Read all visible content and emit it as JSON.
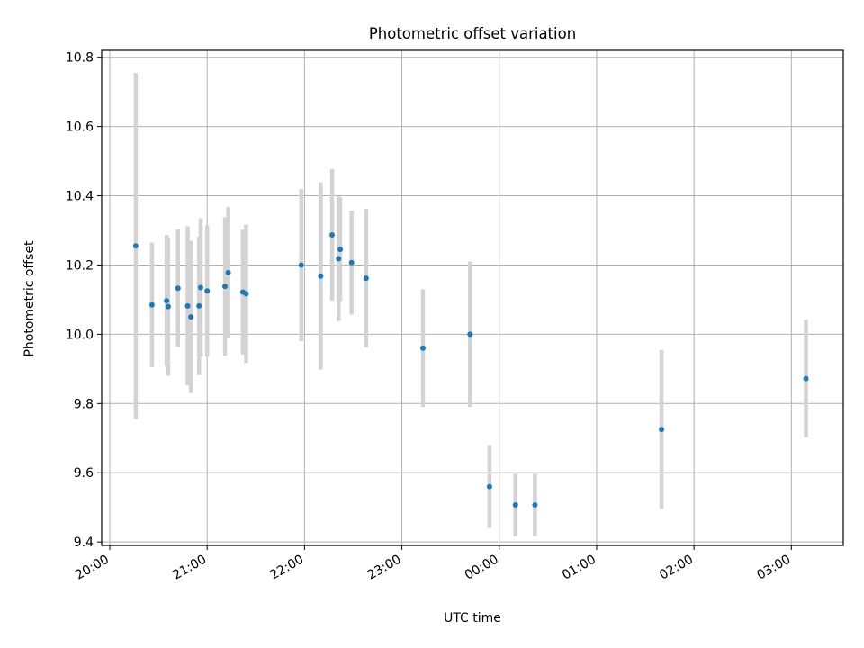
{
  "chart_data": {
    "type": "scatter",
    "title": "Photometric offset variation",
    "xlabel": "UTC time",
    "ylabel": "Photometric offset",
    "xlim": [
      "2000-01-01T19:55:00",
      "2000-01-02T03:32:00"
    ],
    "ylim": [
      9.39,
      10.82
    ],
    "grid": true,
    "x_ticks": [
      {
        "t": "2000-01-01T20:00:00",
        "label": "20:00"
      },
      {
        "t": "2000-01-01T21:00:00",
        "label": "21:00"
      },
      {
        "t": "2000-01-01T22:00:00",
        "label": "22:00"
      },
      {
        "t": "2000-01-01T23:00:00",
        "label": "23:00"
      },
      {
        "t": "2000-01-02T00:00:00",
        "label": "00:00"
      },
      {
        "t": "2000-01-02T01:00:00",
        "label": "01:00"
      },
      {
        "t": "2000-01-02T02:00:00",
        "label": "02:00"
      },
      {
        "t": "2000-01-02T03:00:00",
        "label": "03:00"
      }
    ],
    "y_ticks": [
      {
        "v": 9.4,
        "label": "9.4"
      },
      {
        "v": 9.6,
        "label": "9.6"
      },
      {
        "v": 9.8,
        "label": "9.8"
      },
      {
        "v": 10.0,
        "label": "10.0"
      },
      {
        "v": 10.2,
        "label": "10.2"
      },
      {
        "v": 10.4,
        "label": "10.4"
      },
      {
        "v": 10.6,
        "label": "10.6"
      },
      {
        "v": 10.8,
        "label": "10.8"
      }
    ],
    "colors": {
      "marker": "#1f77b4",
      "errorbar": "#d3d3d3",
      "grid": "#b0b0b0",
      "axes": "#000000"
    },
    "series": [
      {
        "points": [
          {
            "t": "2000-01-01T20:16:00",
            "y": 10.255,
            "err": 0.5
          },
          {
            "t": "2000-01-01T20:26:00",
            "y": 10.085,
            "err": 0.18
          },
          {
            "t": "2000-01-01T20:35:00",
            "y": 10.097,
            "err": 0.19
          },
          {
            "t": "2000-01-01T20:36:00",
            "y": 10.08,
            "err": 0.2
          },
          {
            "t": "2000-01-01T20:42:00",
            "y": 10.133,
            "err": 0.17
          },
          {
            "t": "2000-01-01T20:48:00",
            "y": 10.082,
            "err": 0.23
          },
          {
            "t": "2000-01-01T20:50:00",
            "y": 10.05,
            "err": 0.22
          },
          {
            "t": "2000-01-01T20:56:00",
            "y": 10.135,
            "err": 0.2
          },
          {
            "t": "2000-01-01T20:55:00",
            "y": 10.082,
            "err": 0.2
          },
          {
            "t": "2000-01-01T21:00:00",
            "y": 10.125,
            "err": 0.19
          },
          {
            "t": "2000-01-01T21:11:00",
            "y": 10.138,
            "err": 0.2
          },
          {
            "t": "2000-01-01T21:13:00",
            "y": 10.178,
            "err": 0.19
          },
          {
            "t": "2000-01-01T21:22:00",
            "y": 10.122,
            "err": 0.18
          },
          {
            "t": "2000-01-01T21:24:00",
            "y": 10.117,
            "err": 0.2
          },
          {
            "t": "2000-01-01T21:58:00",
            "y": 10.2,
            "err": 0.22
          },
          {
            "t": "2000-01-01T22:10:00",
            "y": 10.168,
            "err": 0.27
          },
          {
            "t": "2000-01-01T22:17:00",
            "y": 10.287,
            "err": 0.19
          },
          {
            "t": "2000-01-01T22:21:00",
            "y": 10.218,
            "err": 0.18
          },
          {
            "t": "2000-01-01T22:22:00",
            "y": 10.245,
            "err": 0.15
          },
          {
            "t": "2000-01-01T22:29:00",
            "y": 10.207,
            "err": 0.15
          },
          {
            "t": "2000-01-01T22:38:00",
            "y": 10.162,
            "err": 0.2
          },
          {
            "t": "2000-01-01T23:13:00",
            "y": 9.96,
            "err": 0.17
          },
          {
            "t": "2000-01-01T23:42:00",
            "y": 10.0,
            "err": 0.21
          },
          {
            "t": "2000-01-01T23:54:00",
            "y": 9.56,
            "err": 0.12
          },
          {
            "t": "2000-01-02T00:10:00",
            "y": 9.507,
            "err": 0.09
          },
          {
            "t": "2000-01-02T00:22:00",
            "y": 9.507,
            "err": 0.09
          },
          {
            "t": "2000-01-02T01:40:00",
            "y": 9.725,
            "err": 0.23
          },
          {
            "t": "2000-01-02T03:09:00",
            "y": 9.872,
            "err": 0.17
          }
        ]
      }
    ]
  }
}
